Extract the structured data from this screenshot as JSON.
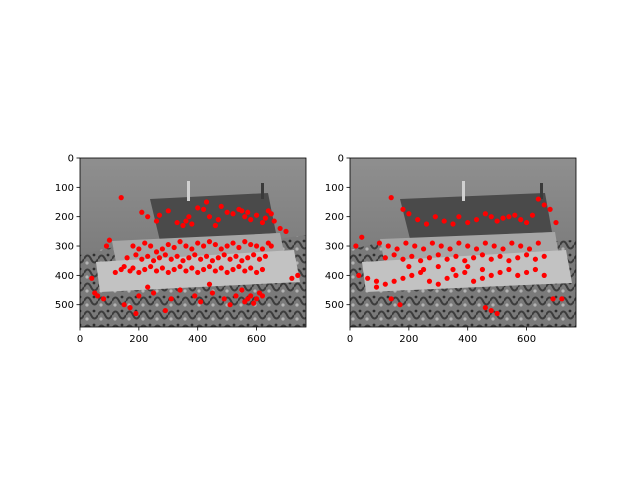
{
  "figure": {
    "background": "#ffffff",
    "marker_color": "#ff0000",
    "photo_tone": "grayscale"
  },
  "chart_data": [
    {
      "type": "scatter",
      "title": "",
      "xlabel": "",
      "ylabel": "",
      "xlim": [
        0,
        768
      ],
      "ylim": [
        576,
        0
      ],
      "x_ticks": [
        0,
        200,
        400,
        600
      ],
      "y_ticks": [
        0,
        100,
        200,
        300,
        400,
        500
      ],
      "grid": false,
      "background_image": "grayscale photo of a model house on a patterned cloth",
      "series": [
        {
          "color": "#ff0000",
          "x": [
            140,
            210,
            230,
            260,
            270,
            300,
            330,
            350,
            360,
            370,
            380,
            400,
            420,
            430,
            440,
            460,
            470,
            480,
            500,
            520,
            540,
            550,
            560,
            570,
            580,
            600,
            620,
            630,
            640,
            650,
            660,
            680,
            700,
            720,
            740,
            120,
            100,
            90,
            60,
            40,
            50,
            80,
            150,
            170,
            190,
            200,
            230,
            250,
            290,
            310,
            340,
            390,
            410,
            440,
            450,
            490,
            510,
            530,
            550,
            560,
            570,
            580,
            590,
            600,
            610,
            620,
            180,
            200,
            220,
            240,
            260,
            280,
            300,
            320,
            340,
            360,
            380,
            400,
            420,
            440,
            460,
            480,
            500,
            520,
            540,
            560,
            580,
            600,
            620,
            640,
            650,
            160,
            190,
            210,
            230,
            250,
            270,
            290,
            310,
            330,
            350,
            370,
            390,
            410,
            430,
            450,
            470,
            490,
            510,
            530,
            550,
            570,
            590,
            610,
            630,
            140,
            150,
            170,
            180,
            200,
            220,
            240,
            260,
            280,
            300,
            320,
            340,
            360,
            380,
            400,
            420,
            440,
            460,
            480,
            500,
            520,
            540,
            560,
            580,
            600,
            620
          ],
          "y": [
            135,
            185,
            200,
            215,
            195,
            180,
            220,
            230,
            215,
            200,
            225,
            170,
            175,
            150,
            200,
            230,
            210,
            165,
            185,
            190,
            175,
            180,
            200,
            185,
            210,
            195,
            220,
            205,
            180,
            190,
            215,
            240,
            250,
            410,
            400,
            390,
            280,
            300,
            470,
            410,
            460,
            480,
            500,
            510,
            530,
            470,
            440,
            460,
            520,
            480,
            450,
            470,
            490,
            430,
            460,
            480,
            500,
            470,
            450,
            490,
            480,
            470,
            495,
            480,
            460,
            470,
            300,
            310,
            290,
            300,
            320,
            310,
            295,
            305,
            285,
            300,
            310,
            290,
            300,
            285,
            295,
            310,
            300,
            290,
            305,
            285,
            295,
            300,
            310,
            290,
            300,
            340,
            330,
            345,
            335,
            350,
            340,
            330,
            345,
            335,
            350,
            340,
            330,
            345,
            335,
            350,
            340,
            330,
            345,
            335,
            350,
            340,
            330,
            345,
            335,
            380,
            370,
            385,
            375,
            390,
            380,
            370,
            385,
            375,
            390,
            380,
            370,
            385,
            375,
            390,
            380,
            370,
            385,
            375,
            390,
            380,
            370,
            385,
            375,
            390,
            380
          ]
        }
      ]
    },
    {
      "type": "scatter",
      "title": "",
      "xlabel": "",
      "ylabel": "",
      "xlim": [
        0,
        768
      ],
      "ylim": [
        576,
        0
      ],
      "x_ticks": [
        0,
        200,
        400,
        600
      ],
      "y_ticks": [
        0,
        100,
        200,
        300,
        400,
        500
      ],
      "grid": false,
      "background_image": "grayscale photo of a model house on a patterned cloth, second view",
      "series": [
        {
          "color": "#ff0000",
          "x": [
            140,
            180,
            200,
            230,
            260,
            290,
            320,
            350,
            370,
            400,
            430,
            460,
            480,
            500,
            520,
            540,
            560,
            580,
            600,
            620,
            640,
            660,
            680,
            700,
            720,
            40,
            20,
            30,
            60,
            90,
            120,
            150,
            180,
            210,
            240,
            270,
            300,
            330,
            360,
            390,
            420,
            450,
            480,
            510,
            540,
            570,
            600,
            630,
            660,
            690,
            100,
            130,
            160,
            190,
            220,
            250,
            280,
            310,
            340,
            370,
            400,
            430,
            460,
            490,
            520,
            550,
            580,
            610,
            640,
            120,
            150,
            180,
            210,
            240,
            270,
            300,
            330,
            360,
            390,
            420,
            450,
            480,
            510,
            540,
            570,
            600,
            630,
            660,
            200,
            250,
            300,
            350,
            400,
            450,
            480,
            500,
            460,
            170,
            140,
            90
          ],
          "y": [
            135,
            175,
            190,
            210,
            225,
            200,
            215,
            225,
            200,
            220,
            210,
            190,
            200,
            215,
            205,
            200,
            195,
            210,
            220,
            195,
            140,
            160,
            175,
            220,
            480,
            270,
            300,
            400,
            410,
            420,
            430,
            420,
            410,
            400,
            390,
            420,
            430,
            410,
            400,
            390,
            420,
            410,
            400,
            390,
            380,
            400,
            390,
            380,
            400,
            480,
            290,
            300,
            310,
            290,
            300,
            310,
            290,
            300,
            310,
            290,
            300,
            310,
            290,
            300,
            310,
            290,
            300,
            310,
            290,
            340,
            330,
            345,
            335,
            350,
            340,
            330,
            345,
            335,
            350,
            340,
            330,
            345,
            335,
            350,
            340,
            330,
            345,
            335,
            370,
            380,
            370,
            380,
            370,
            380,
            520,
            530,
            510,
            500,
            480,
            440
          ]
        }
      ]
    }
  ]
}
